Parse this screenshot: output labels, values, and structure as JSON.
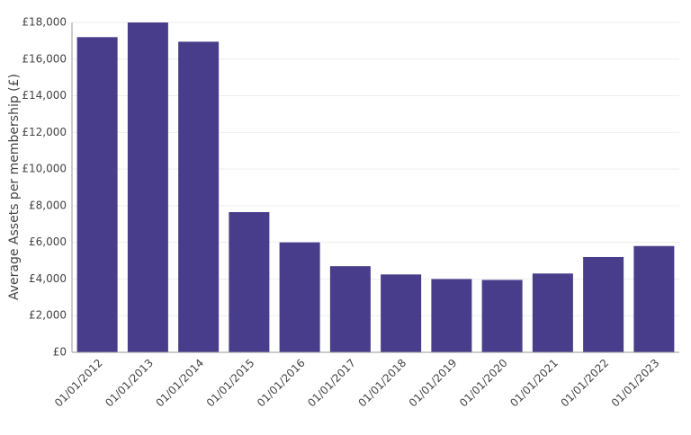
{
  "chart_data": {
    "type": "bar",
    "y_label": "Average Assets per membership (£)",
    "categories": [
      "01/01/2012",
      "01/01/2013",
      "01/01/2014",
      "01/01/2015",
      "01/01/2016",
      "01/01/2017",
      "01/01/2018",
      "01/01/2019",
      "01/01/2020",
      "01/01/2021",
      "01/01/2022",
      "01/01/2023"
    ],
    "values": [
      17200,
      18000,
      16950,
      7650,
      6000,
      4700,
      4250,
      4000,
      3950,
      4300,
      5200,
      5800
    ],
    "color": "#483d8b",
    "ylim": [
      0,
      18000
    ],
    "yticks": [
      {
        "value": 0,
        "label": "£0"
      },
      {
        "value": 2000,
        "label": "£2,000"
      },
      {
        "value": 4000,
        "label": "£4,000"
      },
      {
        "value": 6000,
        "label": "£6,000"
      },
      {
        "value": 8000,
        "label": "£8,000"
      },
      {
        "value": 10000,
        "label": "£10,000"
      },
      {
        "value": 12000,
        "label": "£12,000"
      },
      {
        "value": 14000,
        "label": "£14,000"
      },
      {
        "value": 16000,
        "label": "£16,000"
      },
      {
        "value": 18000,
        "label": "£18,000"
      }
    ],
    "grid": true
  }
}
